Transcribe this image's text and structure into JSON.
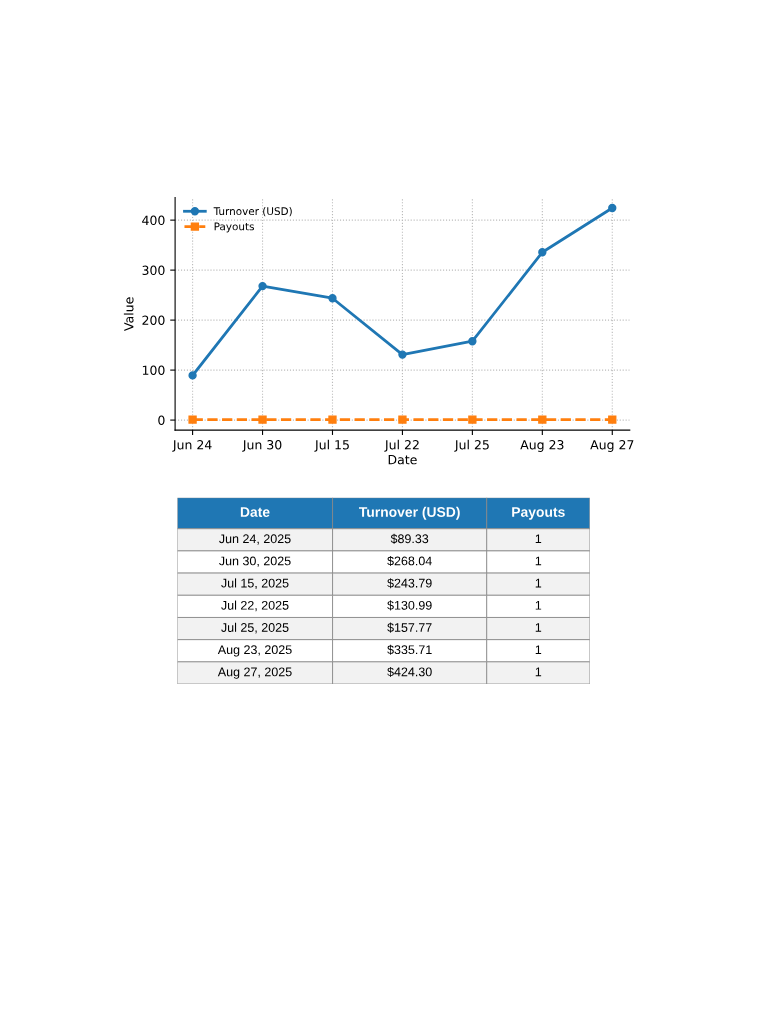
{
  "chart_data": [
    {
      "type": "line",
      "xlabel": "Date",
      "ylabel": "Value",
      "categories": [
        "Jun 24",
        "Jun 30",
        "Jul 15",
        "Jul 22",
        "Jul 25",
        "Aug 23",
        "Aug 27"
      ],
      "series": [
        {
          "name": "Turnover (USD)",
          "color": "#1f77b4",
          "marker": "circle",
          "line_style": "solid",
          "values": [
            89.33,
            268.04,
            243.79,
            130.99,
            157.77,
            335.71,
            424.3
          ]
        },
        {
          "name": "Payouts",
          "color": "#ff7f0e",
          "marker": "square",
          "line_style": "dashed",
          "values": [
            1,
            1,
            1,
            1,
            1,
            1,
            1
          ]
        }
      ],
      "ylim": [
        -20,
        445
      ],
      "yticks": [
        0,
        100,
        200,
        300,
        400
      ],
      "grid": true,
      "legend": "top left"
    },
    {
      "type": "other",
      "annotations": [
        "Date",
        "Turnover (USD)",
        "Payouts",
        "Jun 24, 2025",
        "$89.33",
        "1",
        "Jun 30, 2025",
        "$268.04",
        "1",
        "Jul 15, 2025",
        "$243.79",
        "1",
        "Jul 22, 2025",
        "$130.99",
        "1",
        "Jul 25, 2025",
        "$157.77",
        "1",
        "Aug 23, 2025",
        "$335.71",
        "1",
        "Aug 27, 2025",
        "$424.30",
        "1"
      ]
    }
  ]
}
